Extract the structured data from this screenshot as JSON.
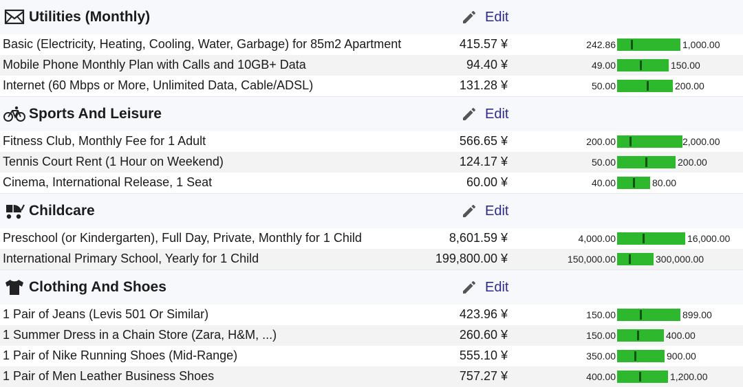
{
  "categories": [
    {
      "title": "Utilities (Monthly)",
      "icon": "envelope-icon",
      "edit_label": "Edit",
      "rows": [
        {
          "name": "Basic (Electricity, Heating, Cooling, Water, Garbage) for 85m2 Apartment",
          "price": "415.57 ¥",
          "min": "242.86",
          "max": "1,000.00",
          "min_value": 242.86,
          "max_value": 1000,
          "value": 415.57
        },
        {
          "name": "Mobile Phone Monthly Plan with Calls and 10GB+ Data",
          "price": "94.40 ¥",
          "min": "49.00",
          "max": "150.00",
          "min_value": 49,
          "max_value": 150,
          "value": 94.4
        },
        {
          "name": "Internet (60 Mbps or More, Unlimited Data, Cable/ADSL)",
          "price": "131.28 ¥",
          "min": "50.00",
          "max": "200.00",
          "min_value": 50,
          "max_value": 200,
          "value": 131.28
        }
      ]
    },
    {
      "title": "Sports And Leisure",
      "icon": "bicycle-icon",
      "edit_label": "Edit",
      "rows": [
        {
          "name": "Fitness Club, Monthly Fee for 1 Adult",
          "price": "566.65 ¥",
          "min": "200.00",
          "max": "2,000.00",
          "min_value": 200,
          "max_value": 2000,
          "value": 566.65
        },
        {
          "name": "Tennis Court Rent (1 Hour on Weekend)",
          "price": "124.17 ¥",
          "min": "50.00",
          "max": "200.00",
          "min_value": 50,
          "max_value": 200,
          "value": 124.17
        },
        {
          "name": "Cinema, International Release, 1 Seat",
          "price": "60.00 ¥",
          "min": "40.00",
          "max": "80.00",
          "min_value": 40,
          "max_value": 80,
          "value": 60.0
        }
      ]
    },
    {
      "title": "Childcare",
      "icon": "stroller-icon",
      "edit_label": "Edit",
      "rows": [
        {
          "name": "Preschool (or Kindergarten), Full Day, Private, Monthly for 1 Child",
          "price": "8,601.59 ¥",
          "min": "4,000.00",
          "max": "16,000.00",
          "min_value": 4000,
          "max_value": 16000,
          "value": 8601.59
        },
        {
          "name": "International Primary School, Yearly for 1 Child",
          "price": "199,800.00 ¥",
          "min": "150,000.00",
          "max": "300,000.00",
          "min_value": 150000,
          "max_value": 300000,
          "value": 199800
        }
      ]
    },
    {
      "title": "Clothing And Shoes",
      "icon": "tshirt-icon",
      "edit_label": "Edit",
      "rows": [
        {
          "name": "1 Pair of Jeans (Levis 501 Or Similar)",
          "price": "423.96 ¥",
          "min": "150.00",
          "max": "899.00",
          "min_value": 150,
          "max_value": 899,
          "value": 423.96
        },
        {
          "name": "1 Summer Dress in a Chain Store (Zara, H&M, ...)",
          "price": "260.60 ¥",
          "min": "150.00",
          "max": "400.00",
          "min_value": 150,
          "max_value": 400,
          "value": 260.6
        },
        {
          "name": "1 Pair of Nike Running Shoes (Mid-Range)",
          "price": "555.10 ¥",
          "min": "350.00",
          "max": "900.00",
          "min_value": 350,
          "max_value": 900,
          "value": 555.1
        },
        {
          "name": "1 Pair of Men Leather Business Shoes",
          "price": "757.27 ¥",
          "min": "400.00",
          "max": "1,200.00",
          "min_value": 400,
          "max_value": 1200,
          "value": 757.27
        }
      ]
    }
  ],
  "colors": {
    "bar": "#2db82d",
    "tick": "#145214",
    "edit_link": "#2b2b8f"
  }
}
